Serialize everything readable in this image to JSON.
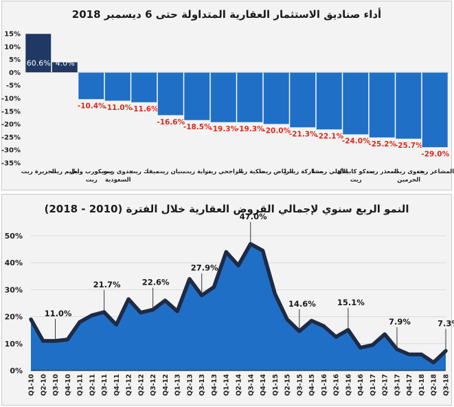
{
  "chart_data": [
    {
      "type": "bar",
      "title": "أداء صناديق الاستثمار العقارية المتداولة حتى 6 ديسمبر 2018",
      "categories": [
        "الجزيرة ريت",
        "تعليم ريت",
        "سويكورب وابل ريت",
        "جدوى ريت السعودية",
        "ميفك ريت",
        "بنيان ريت",
        "دراية ريت",
        "الراجحي ريت",
        "ملكية ريت",
        "الرياض ريت",
        "مشاركة ريت1",
        "الأهلي ريت1",
        "سدكو كابيتال ريت",
        "المعذر ريت",
        "جدوى ريت الحرمين",
        "المشاعر ريت"
      ],
      "values": [
        60.6,
        4.0,
        -10.4,
        -11.0,
        -11.6,
        -16.6,
        -18.5,
        -19.3,
        -19.3,
        -20.0,
        -21.3,
        -22.1,
        -24.0,
        -25.2,
        -25.7,
        -29.0
      ],
      "data_labels": [
        "60.6%",
        "4.0%",
        "-10.4%",
        "-11.0%",
        "-11.6%",
        "-16.6%",
        "-18.5%",
        "-19.3%",
        "-19.3%",
        "-20.0%",
        "-21.3%",
        "-22.1%",
        "-24.0%",
        "-25.2%",
        "-25.7%",
        "-29.0%"
      ],
      "ylim": [
        -35,
        15
      ],
      "y_ticks": [
        "15%",
        "10%",
        "5%",
        "0%",
        "-5%",
        "-10%",
        "-15%",
        "-20%",
        "-25%",
        "-30%",
        "-35%"
      ],
      "y_tick_values": [
        15,
        10,
        5,
        0,
        -5,
        -10,
        -15,
        -20,
        -25,
        -30,
        -35
      ],
      "grid": false,
      "colors": {
        "highlight": "#1f3864",
        "bar": "#1f6fc6",
        "negative_label": "#e0261b",
        "positive_label": "#ffffff"
      }
    },
    {
      "type": "area",
      "title": "النمو الربع سنوي لإجمالي القروض العقارية خلال الفترة (2010 - 2018)",
      "x": [
        "Q1-10",
        "Q2-10",
        "Q3-10",
        "Q4-10",
        "Q1-11",
        "Q2-11",
        "Q3-11",
        "Q4-11",
        "Q1-12",
        "Q2-12",
        "Q3-12",
        "Q4-12",
        "Q1-13",
        "Q2-13",
        "Q3-13",
        "Q4-13",
        "Q1-14",
        "Q2-14",
        "Q3-14",
        "Q4-14",
        "Q1-15",
        "Q2-15",
        "Q3-15",
        "Q4-15",
        "Q1-16",
        "Q2-16",
        "Q3-16",
        "Q4-16",
        "Q1-17",
        "Q2-17",
        "Q3-17",
        "Q4-17",
        "Q1-18",
        "Q2-18",
        "Q3-18"
      ],
      "values": [
        19,
        11,
        11,
        11.5,
        18,
        20.5,
        21.7,
        17,
        26.5,
        21.5,
        22.6,
        26,
        22,
        34,
        27.9,
        31,
        44,
        39,
        47.0,
        44.5,
        28.5,
        19,
        14.6,
        18.5,
        16.5,
        12.5,
        15.1,
        8.5,
        9.5,
        13.5,
        7.9,
        6,
        6,
        3,
        7.3
      ],
      "annotations": [
        {
          "index": 2,
          "label": "11.0%"
        },
        {
          "index": 6,
          "label": "21.7%"
        },
        {
          "index": 10,
          "label": "22.6%"
        },
        {
          "index": 14,
          "label": "27.9%"
        },
        {
          "index": 18,
          "label": "47.0%"
        },
        {
          "index": 22,
          "label": "14.6%"
        },
        {
          "index": 26,
          "label": "15.1%"
        },
        {
          "index": 30,
          "label": "7.9%"
        },
        {
          "index": 34,
          "label": "7.3%"
        }
      ],
      "ylim": [
        0,
        50
      ],
      "y_ticks": [
        "50%",
        "40%",
        "30%",
        "20%",
        "10%",
        "0%"
      ],
      "y_tick_values": [
        50,
        40,
        30,
        20,
        10,
        0
      ],
      "grid": true,
      "colors": {
        "fill": "#1f6fc6",
        "line": "#1f2a44",
        "grid": "#d9d9d9"
      }
    }
  ]
}
